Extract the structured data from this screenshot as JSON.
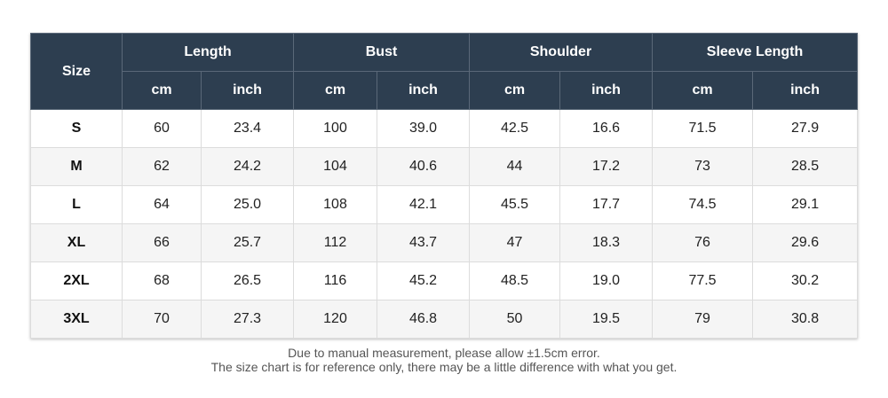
{
  "header": {
    "size_label": "Size",
    "groups": [
      "Length",
      "Bust",
      "Shoulder",
      "Sleeve Length"
    ],
    "units": [
      "cm",
      "inch",
      "cm",
      "inch",
      "cm",
      "inch",
      "cm",
      "inch"
    ]
  },
  "rows": [
    [
      "S",
      "60",
      "23.4",
      "100",
      "39.0",
      "42.5",
      "16.6",
      "71.5",
      "27.9"
    ],
    [
      "M",
      "62",
      "24.2",
      "104",
      "40.6",
      "44",
      "17.2",
      "73",
      "28.5"
    ],
    [
      "L",
      "64",
      "25.0",
      "108",
      "42.1",
      "45.5",
      "17.7",
      "74.5",
      "29.1"
    ],
    [
      "XL",
      "66",
      "25.7",
      "112",
      "43.7",
      "47",
      "18.3",
      "76",
      "29.6"
    ],
    [
      "2XL",
      "68",
      "26.5",
      "116",
      "45.2",
      "48.5",
      "19.0",
      "77.5",
      "30.2"
    ],
    [
      "3XL",
      "70",
      "27.3",
      "120",
      "46.8",
      "50",
      "19.5",
      "79",
      "30.8"
    ]
  ],
  "notes": {
    "line1": "Due to manual measurement, please allow ±1.5cm error.",
    "line2": "The size chart is for reference only, there may be a little difference with what you get."
  },
  "colors": {
    "header_bg": "#2d3e50",
    "header_text": "#ffffff",
    "stripe": "#f5f5f5"
  }
}
